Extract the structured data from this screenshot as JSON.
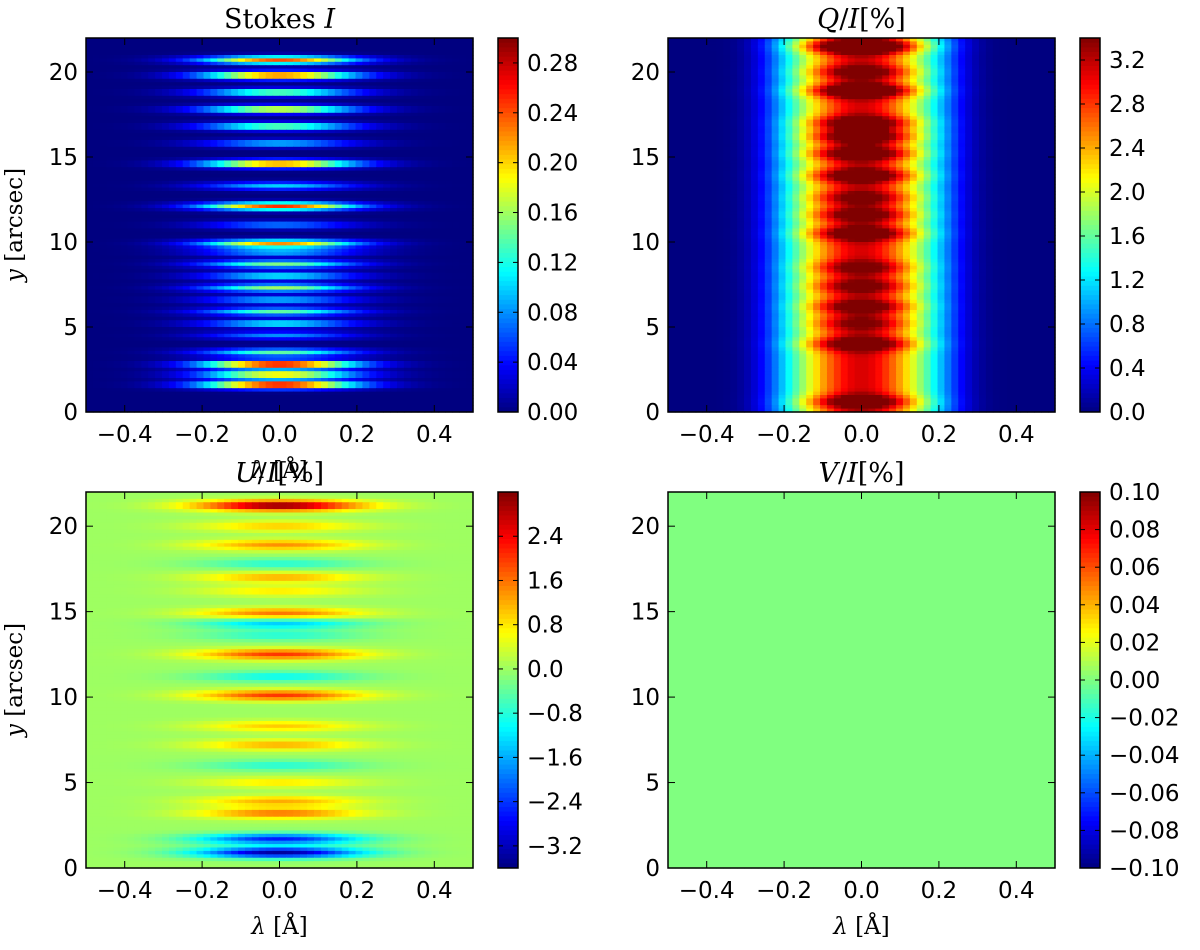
{
  "chart_data": [
    {
      "type": "heatmap",
      "field": "I",
      "title": "Stokes I",
      "title_parts": [
        {
          "t": "Stokes ",
          "i": false
        },
        {
          "t": "I",
          "i": true
        }
      ],
      "xlabel": "λ [Å]",
      "ylabel": "y [arcsec]",
      "xlim": [
        -0.5,
        0.5
      ],
      "ylim": [
        0,
        22
      ],
      "xticks": [
        -0.4,
        -0.2,
        0.0,
        0.2,
        0.4
      ],
      "xtick_labels": [
        "−0.4",
        "−0.2",
        "0.0",
        "0.2",
        "0.4"
      ],
      "yticks": [
        0,
        5,
        10,
        15,
        20
      ],
      "ytick_labels": [
        "0",
        "5",
        "10",
        "15",
        "20"
      ],
      "colormap": "jet",
      "colorbar_range": [
        0.0,
        0.3
      ],
      "colorbar_ticks": [
        0.0,
        0.04,
        0.08,
        0.12,
        0.16,
        0.2,
        0.24,
        0.28
      ],
      "colorbar_labels": [
        "0.00",
        "0.04",
        "0.08",
        "0.12",
        "0.16",
        "0.20",
        "0.24",
        "0.28"
      ],
      "line_width_angstrom": 0.14,
      "bands": [
        {
          "y": 1.6,
          "peak": 0.3
        },
        {
          "y": 2.2,
          "peak": 0.22
        },
        {
          "y": 2.8,
          "peak": 0.3
        },
        {
          "y": 3.5,
          "peak": 0.14
        },
        {
          "y": 4.5,
          "peak": 0.08
        },
        {
          "y": 5.2,
          "peak": 0.12
        },
        {
          "y": 5.9,
          "peak": 0.14
        },
        {
          "y": 6.6,
          "peak": 0.1
        },
        {
          "y": 7.3,
          "peak": 0.16
        },
        {
          "y": 8.0,
          "peak": 0.12
        },
        {
          "y": 8.7,
          "peak": 0.15
        },
        {
          "y": 9.4,
          "peak": 0.1
        },
        {
          "y": 9.9,
          "peak": 0.22
        },
        {
          "y": 11.0,
          "peak": 0.08
        },
        {
          "y": 12.1,
          "peak": 0.25
        },
        {
          "y": 13.3,
          "peak": 0.1
        },
        {
          "y": 14.6,
          "peak": 0.25
        },
        {
          "y": 15.8,
          "peak": 0.1
        },
        {
          "y": 16.8,
          "peak": 0.16
        },
        {
          "y": 17.8,
          "peak": 0.2
        },
        {
          "y": 18.8,
          "peak": 0.16
        },
        {
          "y": 19.8,
          "peak": 0.26
        },
        {
          "y": 20.7,
          "peak": 0.24
        }
      ]
    },
    {
      "type": "heatmap",
      "field": "Q",
      "title": "Q/I[%]",
      "title_parts": [
        {
          "t": "Q",
          "i": true
        },
        {
          "t": "/",
          "i": false
        },
        {
          "t": "I",
          "i": true
        },
        {
          "t": "[%]",
          "i": false
        }
      ],
      "xlabel": "",
      "ylabel": "",
      "xlim": [
        -0.5,
        0.5
      ],
      "ylim": [
        0,
        22
      ],
      "xticks": [
        -0.4,
        -0.2,
        0.0,
        0.2,
        0.4
      ],
      "xtick_labels": [
        "−0.4",
        "−0.2",
        "0.0",
        "0.2",
        "0.4"
      ],
      "yticks": [
        0,
        5,
        10,
        15,
        20
      ],
      "ytick_labels": [
        "0",
        "5",
        "10",
        "15",
        "20"
      ],
      "colormap": "jet",
      "colorbar_range": [
        0.0,
        3.4
      ],
      "colorbar_ticks": [
        0.0,
        0.4,
        0.8,
        1.2,
        1.6,
        2.0,
        2.4,
        2.8,
        3.2
      ],
      "colorbar_labels": [
        "0.0",
        "0.4",
        "0.8",
        "1.2",
        "1.6",
        "2.0",
        "2.4",
        "2.8",
        "3.2"
      ],
      "core_width_angstrom": 0.1,
      "wing_width_angstrom": 0.2,
      "bands": [
        {
          "y": 0.6,
          "peak": 2.8
        },
        {
          "y": 4.0,
          "peak": 2.8
        },
        {
          "y": 5.2,
          "peak": 2.4
        },
        {
          "y": 6.2,
          "peak": 2.6
        },
        {
          "y": 7.4,
          "peak": 2.5
        },
        {
          "y": 8.5,
          "peak": 2.5
        },
        {
          "y": 10.5,
          "peak": 2.8
        },
        {
          "y": 11.6,
          "peak": 2.6
        },
        {
          "y": 12.6,
          "peak": 2.5
        },
        {
          "y": 13.9,
          "peak": 2.8
        },
        {
          "y": 15.2,
          "peak": 2.8
        },
        {
          "y": 16.2,
          "peak": 2.8
        },
        {
          "y": 17.0,
          "peak": 2.8
        },
        {
          "y": 18.9,
          "peak": 3.1
        },
        {
          "y": 20.0,
          "peak": 2.6
        },
        {
          "y": 21.5,
          "peak": 3.4
        }
      ]
    },
    {
      "type": "heatmap",
      "field": "U",
      "title": "U/I[%]",
      "title_parts": [
        {
          "t": "U",
          "i": true
        },
        {
          "t": "/",
          "i": false
        },
        {
          "t": "I",
          "i": true
        },
        {
          "t": "[%]",
          "i": false
        }
      ],
      "xlabel": "λ [Å]",
      "ylabel": "y [arcsec]",
      "xlim": [
        -0.5,
        0.5
      ],
      "ylim": [
        0,
        22
      ],
      "xticks": [
        -0.4,
        -0.2,
        0.0,
        0.2,
        0.4
      ],
      "xtick_labels": [
        "−0.4",
        "−0.2",
        "0.0",
        "0.2",
        "0.4"
      ],
      "yticks": [
        0,
        5,
        10,
        15,
        20
      ],
      "ytick_labels": [
        "0",
        "5",
        "10",
        "15",
        "20"
      ],
      "colormap": "jet",
      "colorbar_range": [
        -3.6,
        3.2
      ],
      "colorbar_ticks": [
        -3.2,
        -2.4,
        -1.6,
        -0.8,
        0.0,
        0.8,
        1.6,
        2.4
      ],
      "colorbar_labels": [
        "−3.2",
        "−2.4",
        "−1.6",
        "−0.8",
        "0.0",
        "0.8",
        "1.6",
        "2.4"
      ],
      "line_width_angstrom": 0.15,
      "bands": [
        {
          "y": 0.9,
          "peak": -3.4
        },
        {
          "y": 1.7,
          "peak": -2.6
        },
        {
          "y": 3.2,
          "peak": 1.6
        },
        {
          "y": 3.9,
          "peak": 1.2
        },
        {
          "y": 5.0,
          "peak": 0.8
        },
        {
          "y": 6.0,
          "peak": -0.8
        },
        {
          "y": 7.2,
          "peak": 1.2
        },
        {
          "y": 8.3,
          "peak": 1.0
        },
        {
          "y": 10.1,
          "peak": 2.0
        },
        {
          "y": 11.2,
          "peak": -1.0
        },
        {
          "y": 12.5,
          "peak": 2.0
        },
        {
          "y": 13.6,
          "peak": -0.8
        },
        {
          "y": 14.3,
          "peak": -1.4
        },
        {
          "y": 14.9,
          "peak": 1.6
        },
        {
          "y": 16.2,
          "peak": 0.8
        },
        {
          "y": 17.0,
          "peak": 1.2
        },
        {
          "y": 17.8,
          "peak": -0.8
        },
        {
          "y": 18.9,
          "peak": 1.4
        },
        {
          "y": 20.0,
          "peak": 1.0
        },
        {
          "y": 21.2,
          "peak": 3.2
        }
      ]
    },
    {
      "type": "heatmap",
      "field": "V",
      "title": "V/I[%]",
      "title_parts": [
        {
          "t": "V",
          "i": true
        },
        {
          "t": "/",
          "i": false
        },
        {
          "t": "I",
          "i": true
        },
        {
          "t": "[%]",
          "i": false
        }
      ],
      "xlabel": "λ [Å]",
      "ylabel": "",
      "xlim": [
        -0.5,
        0.5
      ],
      "ylim": [
        0,
        22
      ],
      "xticks": [
        -0.4,
        -0.2,
        0.0,
        0.2,
        0.4
      ],
      "xtick_labels": [
        "−0.4",
        "−0.2",
        "0.0",
        "0.2",
        "0.4"
      ],
      "yticks": [
        0,
        5,
        10,
        15,
        20
      ],
      "ytick_labels": [
        "0",
        "5",
        "10",
        "15",
        "20"
      ],
      "colormap": "jet",
      "colorbar_range": [
        -0.1,
        0.1
      ],
      "colorbar_ticks": [
        -0.1,
        -0.08,
        -0.06,
        -0.04,
        -0.02,
        0.0,
        0.02,
        0.04,
        0.06,
        0.08,
        0.1
      ],
      "colorbar_labels": [
        "−0.10",
        "−0.08",
        "−0.06",
        "−0.04",
        "−0.02",
        "0.00",
        "0.02",
        "0.04",
        "0.06",
        "0.08",
        "0.10"
      ],
      "uniform_value": 0.0,
      "bands": []
    }
  ]
}
